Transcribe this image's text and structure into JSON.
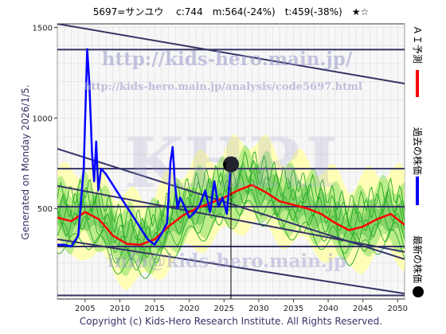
{
  "chart_data": {
    "type": "line",
    "title": "5697=サンユウ　 c:744　m:564(-24%)　t:459(-38%)　★☆",
    "side_label": "Generated on Monday 2026/1/5.",
    "copyright": "Copyright (c) Kids-Hero Research Institute. All Rights Reserved.",
    "watermarks": {
      "url": "http://kids-hero.main.jp/",
      "analysis": "http://kids-hero.main.jp/analysis/code5697.html",
      "brand": "KHRI",
      "email": "info@kids-hero.main.jp"
    },
    "xlim": [
      2001,
      2051
    ],
    "ylim": [
      0,
      1520
    ],
    "x_ticks": [
      2005,
      2010,
      2015,
      2020,
      2025,
      2030,
      2035,
      2040,
      2045,
      2050
    ],
    "x_tick_labels": [
      "2005",
      "2010",
      "2015",
      "2020",
      "2025",
      "2030",
      "2035",
      "2040",
      "2045",
      "2050"
    ],
    "y_ticks": [
      500,
      1000,
      1500
    ],
    "y_tick_labels": [
      "500",
      "1000",
      "1500"
    ],
    "grid": true,
    "current": {
      "x": 2026.0,
      "y": 744
    },
    "trend_lines": [
      {
        "x": [
          2001,
          2051
        ],
        "y": [
          1378,
          1378
        ]
      },
      {
        "x": [
          2001,
          2051
        ],
        "y": [
          720,
          720
        ]
      },
      {
        "x": [
          2001,
          2051
        ],
        "y": [
          510,
          510
        ]
      },
      {
        "x": [
          2001,
          2051
        ],
        "y": [
          290,
          290
        ]
      },
      {
        "x": [
          2001,
          2051
        ],
        "y": [
          20,
          20
        ]
      },
      {
        "x": [
          2001,
          2051
        ],
        "y": [
          1520,
          1190
        ]
      },
      {
        "x": [
          2001,
          2051
        ],
        "y": [
          830,
          220
        ]
      },
      {
        "x": [
          2001,
          2051
        ],
        "y": [
          625,
          260
        ]
      },
      {
        "x": [
          2001,
          2051
        ],
        "y": [
          330,
          30
        ]
      }
    ],
    "series": [
      {
        "name": "ＡＩ予測",
        "color": "#ff0000",
        "x": [
          2001,
          2003,
          2005,
          2007,
          2009,
          2011,
          2013,
          2015,
          2017,
          2019,
          2021,
          2023,
          2025,
          2027,
          2029,
          2031,
          2033,
          2035,
          2037,
          2039,
          2041,
          2043,
          2045,
          2047,
          2049,
          2051
        ],
        "y": [
          450,
          430,
          480,
          440,
          350,
          305,
          300,
          330,
          400,
          460,
          500,
          530,
          560,
          600,
          630,
          590,
          540,
          520,
          500,
          470,
          420,
          380,
          400,
          440,
          470,
          410
        ]
      },
      {
        "name": "過去の株価",
        "color": "#0000ff",
        "x": [
          2001,
          2002,
          2003,
          2004,
          2004.8,
          2005.3,
          2005.6,
          2006.0,
          2006.3,
          2006.6,
          2006.9,
          2007.3,
          2008.0,
          2014.0,
          2015.0,
          2016.0,
          2016.8,
          2017.3,
          2017.6,
          2017.9,
          2018.3,
          2018.7,
          2019.2,
          2020.0,
          2020.8,
          2021.5,
          2022.3,
          2023.0,
          2023.6,
          2024.2,
          2024.8,
          2025.4,
          2026.0
        ],
        "y": [
          300,
          300,
          290,
          350,
          720,
          1380,
          1200,
          800,
          650,
          870,
          600,
          720,
          690,
          330,
          300,
          360,
          420,
          760,
          840,
          650,
          500,
          560,
          520,
          450,
          480,
          520,
          600,
          480,
          650,
          510,
          560,
          470,
          744
        ]
      }
    ],
    "legend": {
      "ai_label": "ＡＩ予測",
      "past_label": "過去の株価",
      "latest_label": "最新の株価"
    }
  }
}
